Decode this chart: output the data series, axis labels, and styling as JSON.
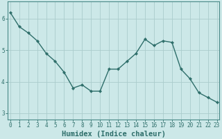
{
  "title": "",
  "xlabel": "Humidex (Indice chaleur)",
  "x": [
    0,
    1,
    2,
    3,
    4,
    5,
    6,
    7,
    8,
    9,
    10,
    11,
    12,
    13,
    14,
    15,
    16,
    17,
    18,
    19,
    20,
    21,
    22,
    23
  ],
  "y": [
    6.2,
    5.75,
    5.55,
    5.3,
    4.9,
    4.65,
    4.3,
    3.8,
    3.9,
    3.7,
    3.7,
    4.4,
    4.4,
    4.65,
    4.9,
    5.35,
    5.15,
    5.3,
    5.25,
    4.4,
    4.1,
    3.65,
    3.5,
    3.35
  ],
  "line_color": "#2e6e6a",
  "marker": "D",
  "markersize": 2.2,
  "linewidth": 1.0,
  "background_color": "#cce8e8",
  "plot_bg_color": "#cce8e8",
  "grid_color": "#aacccc",
  "yticks": [
    3,
    4,
    5,
    6
  ],
  "xticks": [
    0,
    1,
    2,
    3,
    4,
    5,
    6,
    7,
    8,
    9,
    10,
    11,
    12,
    13,
    14,
    15,
    16,
    17,
    18,
    19,
    20,
    21,
    22,
    23
  ],
  "ylim": [
    2.8,
    6.55
  ],
  "xlim": [
    -0.3,
    23.3
  ],
  "tick_fontsize": 5.5,
  "xlabel_fontsize": 7.5,
  "axis_color": "#2e6e6a",
  "spine_color": "#4a8a88"
}
